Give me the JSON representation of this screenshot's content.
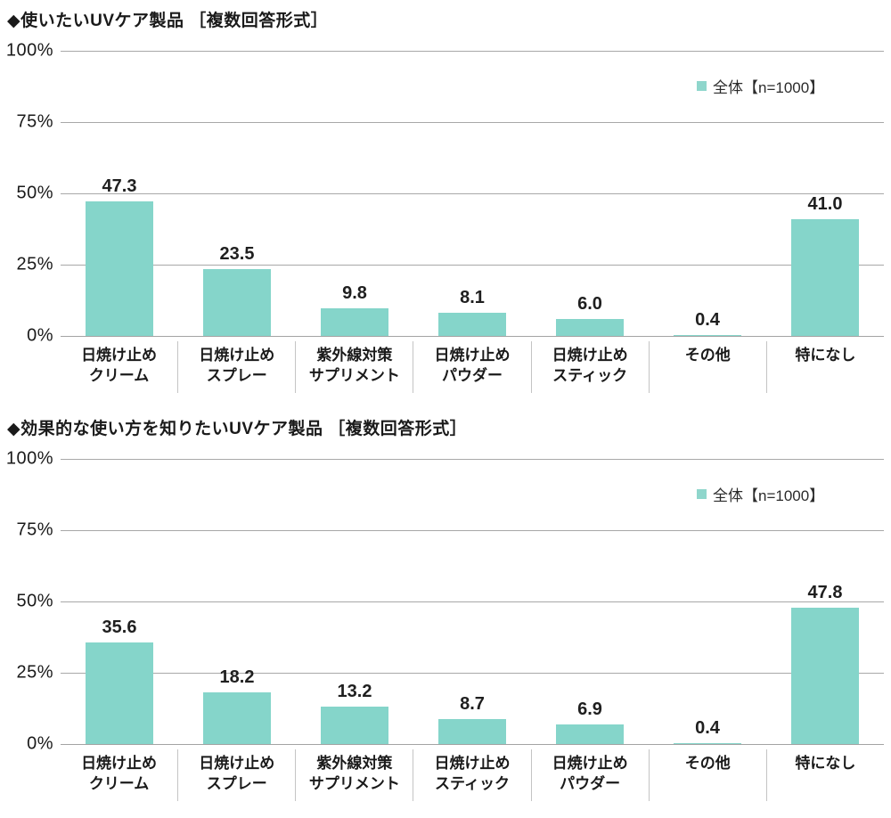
{
  "colors": {
    "bar": "#85d5ca",
    "legend_marker": "#8fd6cc",
    "gridline": "#a8a8a8",
    "axis": "#a3a3a3",
    "divider": "#c4c4c4",
    "text": "#1a1a1a"
  },
  "chart_data": [
    {
      "type": "bar",
      "title": "◆使いたいUVケア製品 ［複数回答形式］",
      "legend": "全体【n=1000】",
      "legend_position": "top-right",
      "categories": [
        [
          "日焼け止め",
          "クリーム"
        ],
        [
          "日焼け止め",
          "スプレー"
        ],
        [
          "紫外線対策",
          "サプリメント"
        ],
        [
          "日焼け止め",
          "パウダー"
        ],
        [
          "日焼け止め",
          "スティック"
        ],
        [
          "その他"
        ],
        [
          "特になし"
        ]
      ],
      "values": [
        47.3,
        23.5,
        9.8,
        8.1,
        6.0,
        0.4,
        41.0
      ],
      "value_labels": [
        "47.3",
        "23.5",
        "9.8",
        "8.1",
        "6.0",
        "0.4",
        "41.0"
      ],
      "xlabel": "",
      "ylabel": "",
      "ylim": [
        0,
        100
      ],
      "yticks": [
        "100%",
        "75%",
        "50%",
        "25%",
        "0%"
      ],
      "grid": true
    },
    {
      "type": "bar",
      "title": "◆効果的な使い方を知りたいUVケア製品 ［複数回答形式］",
      "legend": "全体【n=1000】",
      "legend_position": "top-right",
      "categories": [
        [
          "日焼け止め",
          "クリーム"
        ],
        [
          "日焼け止め",
          "スプレー"
        ],
        [
          "紫外線対策",
          "サプリメント"
        ],
        [
          "日焼け止め",
          "スティック"
        ],
        [
          "日焼け止め",
          "パウダー"
        ],
        [
          "その他"
        ],
        [
          "特になし"
        ]
      ],
      "values": [
        35.6,
        18.2,
        13.2,
        8.7,
        6.9,
        0.4,
        47.8
      ],
      "value_labels": [
        "35.6",
        "18.2",
        "13.2",
        "8.7",
        "6.9",
        "0.4",
        "47.8"
      ],
      "xlabel": "",
      "ylabel": "",
      "ylim": [
        0,
        100
      ],
      "yticks": [
        "100%",
        "75%",
        "50%",
        "25%",
        "0%"
      ],
      "grid": true
    }
  ]
}
